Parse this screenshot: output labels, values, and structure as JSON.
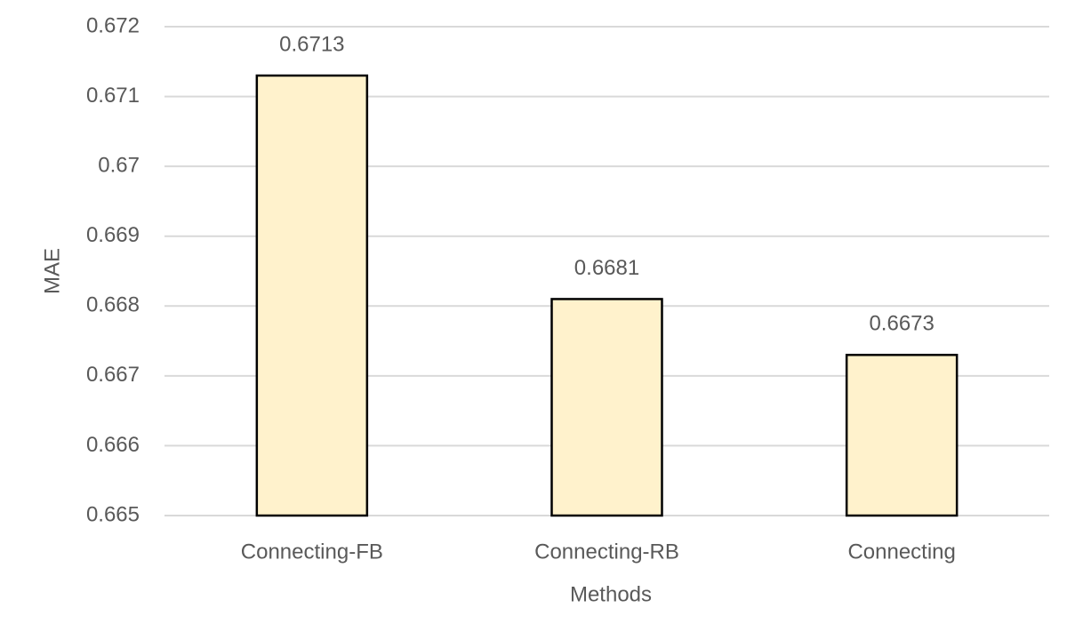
{
  "chart_data": {
    "type": "bar",
    "categories": [
      "Connecting-FB",
      "Connecting-RB",
      "Connecting"
    ],
    "values": [
      0.6713,
      0.6681,
      0.6673
    ],
    "color": "#fff2cc",
    "x_label": "Methods",
    "y_label": "MAE",
    "ylim": [
      0.665,
      0.672
    ],
    "yticks": [
      0.665,
      0.666,
      0.667,
      0.668,
      0.669,
      0.67,
      0.671,
      0.672
    ],
    "grid": true
  }
}
